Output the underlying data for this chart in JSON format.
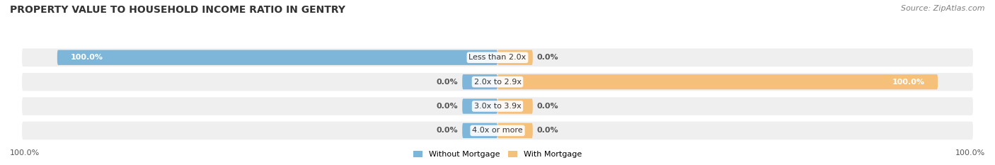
{
  "title": "PROPERTY VALUE TO HOUSEHOLD INCOME RATIO IN GENTRY",
  "source": "Source: ZipAtlas.com",
  "categories": [
    "Less than 2.0x",
    "2.0x to 2.9x",
    "3.0x to 3.9x",
    "4.0x or more"
  ],
  "without_mortgage": [
    100.0,
    0.0,
    0.0,
    0.0
  ],
  "with_mortgage": [
    0.0,
    100.0,
    0.0,
    0.0
  ],
  "blue_color": "#7EB6D9",
  "orange_color": "#F5C07A",
  "row_bg_color": "#EFEFEF",
  "title_fontsize": 10,
  "label_fontsize": 8,
  "legend_fontsize": 8,
  "source_fontsize": 8,
  "max_val": 100,
  "stub_val": 8,
  "figsize": [
    14.06,
    2.33
  ],
  "dpi": 100
}
